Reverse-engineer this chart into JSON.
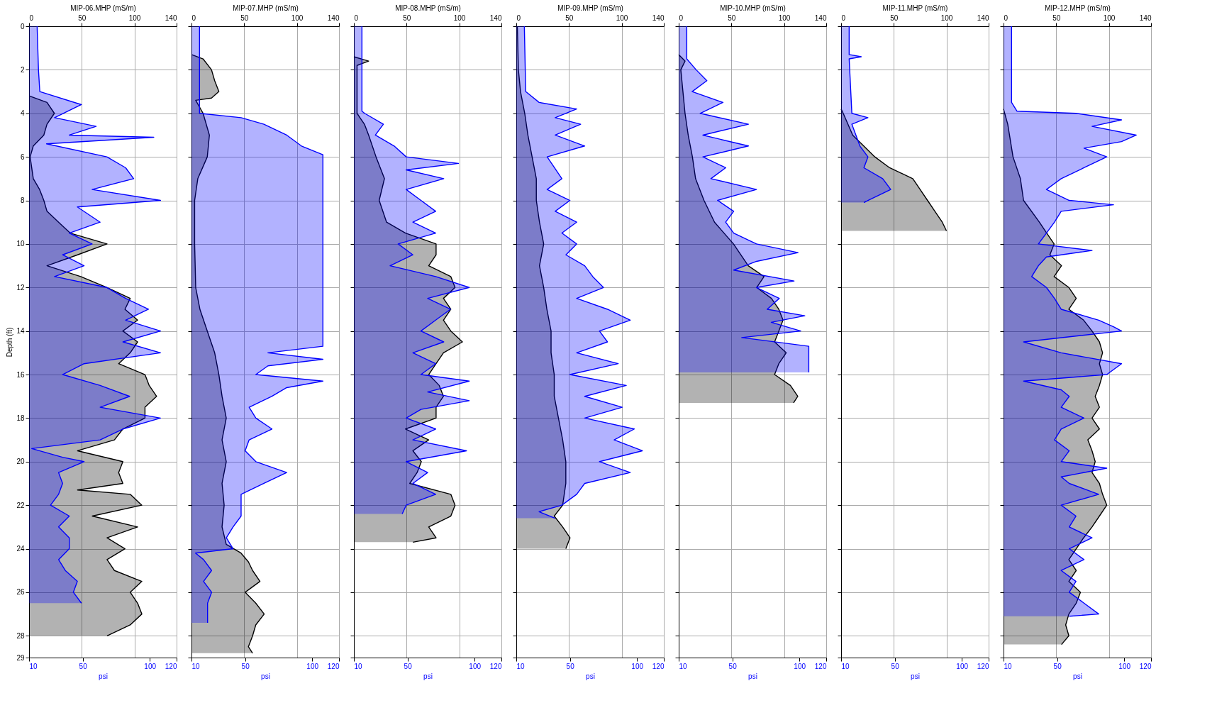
{
  "chart_data": [
    {
      "type": "area",
      "orientation": "horizontal",
      "x2label": "MIP-06.MHP (mS/m)",
      "xlabel": "psi",
      "ylabel": "Depth (ft)",
      "x2lim": [
        0,
        140
      ],
      "x2ticks": [
        0,
        50,
        100,
        140
      ],
      "xlim": [
        10,
        120
      ],
      "xticks": [
        10,
        50,
        100,
        120
      ],
      "ylim": [
        29,
        0
      ],
      "yticks": [
        0,
        2,
        4,
        6,
        8,
        10,
        12,
        14,
        16,
        18,
        20,
        22,
        24,
        26,
        28,
        29
      ],
      "grid": true,
      "series": [
        {
          "color": "#000000",
          "axis": "x2",
          "x": [
            3.2,
            3.5,
            4.0,
            4.5,
            5.0,
            5.5,
            6.0,
            7.0,
            7.5,
            8.0,
            8.5,
            9.0,
            9.5,
            10.0,
            10.5,
            11.0,
            11.5,
            12.0,
            12.5,
            13.0,
            13.5,
            14.0,
            14.5,
            15.0,
            15.5,
            16.0,
            16.5,
            17.0,
            17.5,
            18.0,
            18.5,
            19.0,
            19.5,
            20.0,
            20.5,
            21.0,
            21.3,
            21.5,
            22.0,
            22.5,
            23.0,
            23.5,
            24.0,
            24.5,
            25.0,
            25.5,
            26.0,
            26.5,
            27.0,
            27.5,
            28.0
          ],
          "values": [
            0,
            17,
            24,
            17,
            14,
            4,
            1,
            4,
            10,
            14,
            17,
            28,
            39,
            74,
            46,
            17,
            49,
            74,
            96,
            91,
            103,
            89,
            103,
            96,
            85,
            110,
            114,
            121,
            110,
            110,
            89,
            81,
            46,
            89,
            85,
            89,
            46,
            96,
            107,
            60,
            103,
            74,
            91,
            74,
            81,
            107,
            96,
            103,
            107,
            96,
            74
          ]
        },
        {
          "color": "#0000ff",
          "x": [
            0,
            2,
            3,
            3.6,
            4.2,
            4.6,
            5.0,
            5.1,
            5.4,
            6.0,
            6.5,
            7.0,
            7.5,
            8.0,
            8.3,
            9.0,
            9.5,
            10.0,
            10.5,
            11.0,
            11.5,
            12.0,
            12.5,
            13.0,
            13.5,
            14.0,
            14.5,
            15.0,
            15.5,
            16.0,
            16.5,
            17.0,
            17.5,
            18.0,
            18.5,
            19.0,
            19.4,
            19.8,
            20.0,
            20.5,
            21.0,
            21.5,
            22.0,
            22.5,
            23.0,
            23.5,
            24.0,
            24.5,
            25.0,
            25.5,
            26.0,
            26.5
          ],
          "values": [
            16,
            17,
            18,
            49,
            29,
            60,
            40,
            103,
            23,
            68,
            82,
            88,
            57,
            108,
            46,
            63,
            40,
            57,
            35,
            51,
            29,
            68,
            82,
            99,
            82,
            108,
            80,
            108,
            51,
            35,
            63,
            85,
            63,
            108,
            80,
            63,
            12,
            35,
            51,
            32,
            35,
            32,
            26,
            40,
            32,
            40,
            40,
            32,
            37,
            46,
            43,
            49
          ]
        }
      ]
    },
    {
      "type": "area",
      "orientation": "horizontal",
      "x2label": "MIP-07.MHP (mS/m)",
      "xlabel": "psi",
      "x2lim": [
        0,
        140
      ],
      "x2ticks": [
        0,
        50,
        100,
        140
      ],
      "xlim": [
        10,
        120
      ],
      "xticks": [
        10,
        50,
        100,
        120
      ],
      "ylim": [
        29,
        0
      ],
      "yticks": [
        0,
        2,
        4,
        6,
        8,
        10,
        12,
        14,
        16,
        18,
        20,
        22,
        24,
        26,
        28,
        29
      ],
      "grid": true,
      "tick_labels": "x",
      "series": [
        {
          "color": "#000000",
          "axis": "x2",
          "x": [
            1.3,
            1.5,
            2.0,
            2.5,
            3.0,
            3.3,
            3.4,
            4.0,
            5.0,
            6.0,
            7.0,
            8.0,
            10.0,
            12.0,
            13.0,
            14.0,
            15.0,
            16.0,
            17.0,
            18.0,
            19.0,
            20.0,
            21.0,
            22.0,
            23.0,
            23.8,
            24.2,
            24.6,
            25.0,
            25.5,
            26.0,
            26.5,
            27.0,
            27.5,
            28.0,
            28.5,
            28.8
          ],
          "values": [
            0,
            11,
            19,
            22,
            26,
            19,
            4,
            11,
            17,
            15,
            6,
            3,
            3,
            4,
            8,
            15,
            22,
            26,
            29,
            33,
            29,
            33,
            29,
            31,
            29,
            33,
            47,
            54,
            58,
            65,
            51,
            61,
            69,
            61,
            58,
            54,
            58
          ]
        },
        {
          "color": "#0000ff",
          "x": [
            0,
            4.0,
            4.2,
            4.5,
            5.0,
            5.5,
            5.9,
            8.0,
            10.0,
            12.0,
            14.0,
            14.7,
            15.0,
            15.3,
            15.6,
            16.0,
            16.3,
            16.6,
            17.0,
            17.5,
            18.0,
            18.5,
            19.0,
            19.5,
            20.0,
            20.5,
            21.0,
            21.5,
            22.0,
            22.5,
            23.0,
            23.5,
            24.0,
            24.2,
            24.5,
            25.0,
            25.5,
            26.0,
            26.5,
            27.0,
            27.4
          ],
          "values": [
            16,
            16,
            47,
            64,
            81,
            92,
            108,
            108,
            108,
            108,
            108,
            108,
            67,
            108,
            67,
            58,
            108,
            81,
            70,
            53,
            58,
            70,
            53,
            50,
            58,
            81,
            64,
            47,
            47,
            47,
            41,
            36,
            41,
            13,
            19,
            25,
            19,
            25,
            22,
            22,
            22
          ]
        }
      ]
    },
    {
      "type": "area",
      "orientation": "horizontal",
      "x2label": "MIP-08.MHP (mS/m)",
      "xlabel": "psi",
      "x2lim": [
        0,
        140
      ],
      "x2ticks": [
        0,
        50,
        100,
        140
      ],
      "xlim": [
        10,
        120
      ],
      "xticks": [
        10,
        50,
        100,
        120
      ],
      "ylim": [
        29,
        0
      ],
      "yticks": [
        0,
        2,
        4,
        6,
        8,
        10,
        12,
        14,
        16,
        18,
        20,
        22,
        24,
        26,
        28,
        29
      ],
      "grid": true,
      "tick_labels": "x",
      "series": [
        {
          "color": "#000000",
          "axis": "x2",
          "x": [
            1.4,
            1.6,
            1.8,
            4.0,
            4.5,
            5.0,
            6.0,
            7.0,
            8.0,
            9.0,
            9.5,
            10.0,
            10.5,
            11.0,
            11.5,
            12.0,
            12.5,
            13.0,
            13.5,
            14.0,
            14.5,
            15.0,
            15.5,
            16.0,
            16.5,
            17.0,
            17.5,
            18.0,
            18.5,
            19.0,
            19.5,
            20.0,
            20.5,
            21.0,
            21.5,
            22.0,
            22.5,
            23.0,
            23.5,
            23.7
          ],
          "values": [
            0,
            14,
            3,
            3,
            10,
            14,
            21,
            29,
            24,
            31,
            49,
            78,
            78,
            71,
            92,
            96,
            85,
            92,
            85,
            92,
            103,
            85,
            78,
            71,
            81,
            85,
            78,
            78,
            49,
            71,
            56,
            64,
            60,
            53,
            92,
            96,
            92,
            71,
            78,
            56
          ]
        },
        {
          "color": "#0000ff",
          "x": [
            0,
            3.9,
            4.0,
            4.5,
            5.0,
            5.5,
            6.0,
            6.3,
            6.6,
            7.0,
            7.5,
            8.0,
            8.5,
            9.0,
            9.5,
            10.0,
            10.5,
            11.0,
            11.5,
            12.0,
            12.5,
            13.0,
            13.5,
            14.0,
            14.5,
            15.0,
            15.5,
            16.0,
            16.3,
            16.8,
            17.2,
            17.6,
            18.0,
            18.5,
            19.0,
            19.5,
            20.0,
            20.5,
            21.0,
            21.5,
            22.0,
            22.4
          ],
          "values": [
            16,
            16,
            18,
            32,
            26,
            40,
            49,
            88,
            49,
            77,
            49,
            60,
            71,
            54,
            71,
            43,
            54,
            37,
            71,
            96,
            65,
            82,
            71,
            60,
            77,
            54,
            71,
            60,
            96,
            65,
            96,
            60,
            49,
            71,
            54,
            94,
            49,
            65,
            54,
            71,
            49,
            46
          ]
        }
      ]
    },
    {
      "type": "area",
      "orientation": "horizontal",
      "x2label": "MIP-09.MHP (mS/m)",
      "xlabel": "psi",
      "x2lim": [
        0,
        140
      ],
      "x2ticks": [
        0,
        50,
        100,
        140
      ],
      "xlim": [
        10,
        120
      ],
      "xticks": [
        10,
        50,
        100,
        120
      ],
      "ylim": [
        29,
        0
      ],
      "yticks": [
        0,
        2,
        4,
        6,
        8,
        10,
        12,
        14,
        16,
        18,
        20,
        22,
        24,
        26,
        28,
        29
      ],
      "grid": true,
      "tick_labels": "x",
      "series": [
        {
          "color": "#000000",
          "axis": "x2",
          "x": [
            0,
            2,
            3,
            4,
            5,
            6,
            7,
            8,
            9,
            10,
            11,
            12,
            13,
            14,
            15,
            16,
            17,
            18,
            19,
            20,
            21,
            22,
            22.5,
            23.0,
            23.5,
            24.0
          ],
          "values": [
            1,
            2,
            4,
            8,
            11,
            15,
            19,
            19,
            22,
            26,
            22,
            26,
            29,
            33,
            33,
            36,
            36,
            40,
            44,
            47,
            47,
            44,
            36,
            44,
            51,
            47
          ]
        },
        {
          "color": "#0000ff",
          "x": [
            0,
            3.0,
            3.5,
            3.8,
            4.2,
            4.5,
            5.0,
            5.5,
            6.0,
            7.0,
            7.5,
            8.0,
            8.5,
            9.0,
            9.5,
            10.0,
            10.5,
            11.0,
            11.5,
            12.0,
            12.5,
            13.0,
            13.5,
            14.0,
            14.5,
            15.0,
            15.5,
            16.0,
            16.5,
            17.0,
            17.5,
            18.0,
            18.5,
            19.0,
            19.5,
            20.0,
            20.5,
            21.0,
            21.5,
            22.0,
            22.3,
            22.6
          ],
          "values": [
            16,
            17,
            27,
            55,
            39,
            58,
            39,
            61,
            33,
            44,
            33,
            50,
            39,
            55,
            44,
            55,
            47,
            61,
            67,
            75,
            55,
            78,
            95,
            72,
            78,
            55,
            86,
            50,
            92,
            61,
            89,
            61,
            98,
            83,
            104,
            72,
            95,
            61,
            55,
            44,
            27,
            39
          ]
        }
      ]
    },
    {
      "type": "area",
      "orientation": "horizontal",
      "x2label": "MIP-10.MHP (mS/m)",
      "xlabel": "psi",
      "x2lim": [
        0,
        140
      ],
      "x2ticks": [
        0,
        50,
        100,
        140
      ],
      "xlim": [
        10,
        120
      ],
      "xticks": [
        10,
        50,
        100,
        120
      ],
      "ylim": [
        29,
        0
      ],
      "yticks": [
        0,
        2,
        4,
        6,
        8,
        10,
        12,
        14,
        16,
        18,
        20,
        22,
        24,
        26,
        28,
        29
      ],
      "grid": true,
      "tick_labels": "x",
      "series": [
        {
          "color": "#000000",
          "axis": "x2",
          "x": [
            1.3,
            1.6,
            2.0,
            4.0,
            5.0,
            6.0,
            7.0,
            8.0,
            9.0,
            10.0,
            11.0,
            11.5,
            12.0,
            12.5,
            13.0,
            13.5,
            14.0,
            14.5,
            15.0,
            15.5,
            16.0,
            16.5,
            17.0,
            17.3
          ],
          "values": [
            0,
            6,
            2,
            6,
            9,
            13,
            16,
            24,
            34,
            52,
            66,
            81,
            74,
            88,
            95,
            99,
            95,
            91,
            102,
            95,
            91,
            106,
            113,
            109
          ]
        },
        {
          "color": "#0000ff",
          "x": [
            0,
            1.5,
            2.0,
            2.5,
            3.0,
            3.5,
            4.0,
            4.5,
            5.0,
            5.5,
            6.0,
            6.5,
            7.0,
            7.5,
            8.0,
            8.5,
            9.0,
            9.5,
            10.0,
            10.4,
            10.8,
            11.2,
            11.7,
            12.0,
            12.5,
            13.0,
            13.3,
            13.6,
            14.0,
            14.3,
            14.7,
            15.9
          ],
          "values": [
            16,
            16,
            23,
            31,
            20,
            43,
            26,
            62,
            28,
            62,
            28,
            45,
            34,
            68,
            39,
            51,
            45,
            51,
            68,
            99,
            68,
            51,
            96,
            68,
            85,
            76,
            104,
            79,
            101,
            57,
            107,
            107
          ]
        }
      ]
    },
    {
      "type": "area",
      "orientation": "horizontal",
      "x2label": "MIP-11.MHP (mS/m)",
      "xlabel": "psi",
      "x2lim": [
        0,
        140
      ],
      "x2ticks": [
        0,
        50,
        100,
        140
      ],
      "xlim": [
        10,
        120
      ],
      "xticks": [
        10,
        50,
        100,
        120
      ],
      "ylim": [
        29,
        0
      ],
      "yticks": [
        0,
        2,
        4,
        6,
        8,
        10,
        12,
        14,
        16,
        18,
        20,
        22,
        24,
        26,
        28,
        29
      ],
      "grid": true,
      "tick_labels": "x",
      "series": [
        {
          "color": "#000000",
          "axis": "x2",
          "x": [
            3.8,
            4.0,
            5.0,
            6.0,
            6.5,
            7.0,
            7.5,
            8.0,
            8.5,
            9.0,
            9.4
          ],
          "values": [
            0,
            2,
            11,
            32,
            46,
            68,
            75,
            82,
            89,
            96,
            100
          ]
        },
        {
          "color": "#0000ff",
          "x": [
            0,
            1.3,
            1.4,
            1.5,
            4.0,
            4.2,
            4.5,
            5.5,
            6.0,
            6.5,
            7.0,
            7.5,
            8.0,
            8.1
          ],
          "values": [
            16,
            16,
            25,
            16,
            18,
            30,
            18,
            24,
            30,
            27,
            41,
            47,
            30,
            27
          ]
        }
      ]
    },
    {
      "type": "area",
      "orientation": "horizontal",
      "x2label": "MIP-12.MHP (mS/m)",
      "xlabel": "psi",
      "x2lim": [
        0,
        140
      ],
      "x2ticks": [
        0,
        50,
        100,
        140
      ],
      "xlim": [
        10,
        120
      ],
      "xticks": [
        10,
        50,
        100,
        120
      ],
      "ylim": [
        29,
        0
      ],
      "yticks": [
        0,
        2,
        4,
        6,
        8,
        10,
        12,
        14,
        16,
        18,
        20,
        22,
        24,
        26,
        28,
        29
      ],
      "grid": true,
      "tick_labels": "x",
      "series": [
        {
          "color": "#000000",
          "axis": "x2",
          "x": [
            3.8,
            4.5,
            6.0,
            7.0,
            8.0,
            9.0,
            9.5,
            10.0,
            10.5,
            11.0,
            11.5,
            12.0,
            12.5,
            13.0,
            13.5,
            14.0,
            14.5,
            15.0,
            15.5,
            16.0,
            16.5,
            17.0,
            17.5,
            18.0,
            18.5,
            19.0,
            19.5,
            20.0,
            20.5,
            21.0,
            21.5,
            22.0,
            22.5,
            23.0,
            23.5,
            24.0,
            24.5,
            25.0,
            25.5,
            26.0,
            26.5,
            27.0,
            27.5,
            28.0,
            28.4
          ],
          "values": [
            0,
            4,
            9,
            16,
            19,
            34,
            41,
            48,
            44,
            55,
            48,
            62,
            69,
            62,
            76,
            84,
            91,
            94,
            91,
            94,
            91,
            87,
            91,
            84,
            91,
            80,
            84,
            87,
            84,
            91,
            94,
            98,
            91,
            84,
            76,
            69,
            62,
            69,
            62,
            73,
            69,
            62,
            59,
            62,
            55
          ]
        },
        {
          "color": "#0000ff",
          "x": [
            0,
            3.5,
            3.9,
            4.0,
            4.3,
            4.6,
            5.0,
            5.3,
            5.6,
            6.0,
            6.5,
            7.0,
            7.5,
            8.0,
            8.2,
            8.5,
            9.0,
            9.5,
            10.0,
            10.3,
            10.6,
            11.0,
            11.5,
            12.0,
            12.5,
            13.0,
            13.5,
            13.8,
            14.0,
            14.5,
            15.0,
            15.5,
            16.0,
            16.3,
            16.7,
            17.0,
            17.5,
            18.0,
            18.5,
            19.0,
            19.5,
            20.0,
            20.3,
            20.7,
            21.0,
            21.5,
            22.0,
            22.5,
            23.0,
            23.5,
            24.0,
            24.5,
            25.0,
            25.5,
            26.0,
            26.5,
            27.0,
            27.1
          ],
          "values": [
            16,
            16,
            20,
            64,
            98,
            76,
            109,
            98,
            70,
            87,
            70,
            53,
            42,
            59,
            92,
            53,
            48,
            42,
            36,
            76,
            42,
            36,
            31,
            42,
            48,
            53,
            81,
            92,
            98,
            25,
            53,
            98,
            87,
            25,
            53,
            59,
            53,
            70,
            53,
            48,
            59,
            53,
            87,
            53,
            59,
            81,
            53,
            64,
            59,
            76,
            59,
            70,
            53,
            64,
            59,
            70,
            81,
            59
          ]
        }
      ]
    }
  ]
}
